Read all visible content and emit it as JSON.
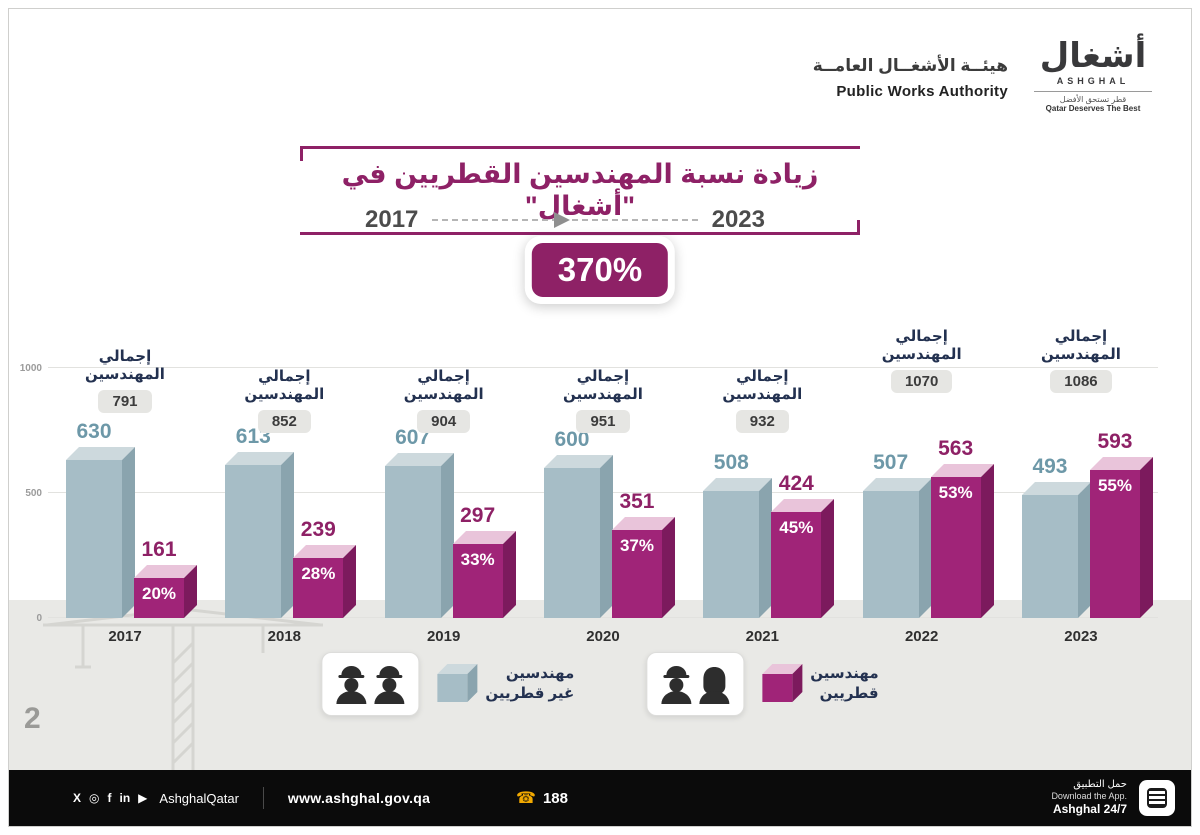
{
  "page": {
    "number": "2"
  },
  "header": {
    "org_name_ar": "هيئــة الأشغــال العامــة",
    "org_name_en": "Public Works Authority",
    "logo_ar": "أشغال",
    "logo_en": "ASHGHAL",
    "logo_tagline_ar": "قطر تستحق الأفضل",
    "logo_tagline_en": "Qatar Deserves The Best"
  },
  "title": "زيادة نسبة المهندسين القطريين في \"أشغال\"",
  "timeline": {
    "start_year": "2017",
    "end_year": "2023",
    "growth": "370%"
  },
  "chart_data": {
    "type": "bar",
    "title": "زيادة نسبة المهندسين القطريين في \"أشغال\"",
    "categories": [
      "2017",
      "2018",
      "2019",
      "2020",
      "2021",
      "2022",
      "2023"
    ],
    "series": [
      {
        "name": "مهندسين غير قطريين",
        "color": "#a6bdc6",
        "values": [
          630,
          613,
          607,
          600,
          508,
          507,
          493
        ]
      },
      {
        "name": "مهندسين قطريين",
        "color": "#a02478",
        "values": [
          161,
          239,
          297,
          351,
          424,
          563,
          593
        ],
        "percent_labels": [
          "20%",
          "28%",
          "33%",
          "37%",
          "45%",
          "53%",
          "55%"
        ]
      }
    ],
    "totals": {
      "label_line1": "إجمالي",
      "label_line2": "المهندسين",
      "values": [
        791,
        852,
        904,
        951,
        932,
        1070,
        1086
      ]
    },
    "y_ticks": [
      "1000",
      "500",
      "0"
    ],
    "ylim": [
      0,
      1000
    ],
    "grid": true,
    "legend_position": "bottom"
  },
  "legend": {
    "non_qatari": {
      "line1": "مهندسين",
      "line2": "غير قطريين",
      "color": "#a6bdc6"
    },
    "qatari": {
      "line1": "مهندسين",
      "line2": "قطريين",
      "color": "#a02478"
    }
  },
  "icons": {
    "phone": "☎"
  },
  "footer": {
    "social_glyphs": [
      "X",
      "◎",
      "f",
      "in",
      "▶"
    ],
    "social_handle": "AshghalQatar",
    "website": "www.ashghal.gov.qa",
    "phone": "188",
    "app_title_ar": "حمل التطبيق",
    "app_title_en": "Download the App.",
    "app_name": "Ashghal 24/7"
  },
  "colors": {
    "accent": "#8e2166",
    "bar_non_qatari": "#a6bdc6",
    "bar_qatari": "#a02478",
    "footer_bg": "#0b0b0b",
    "band_bg": "#e9e9e6"
  }
}
